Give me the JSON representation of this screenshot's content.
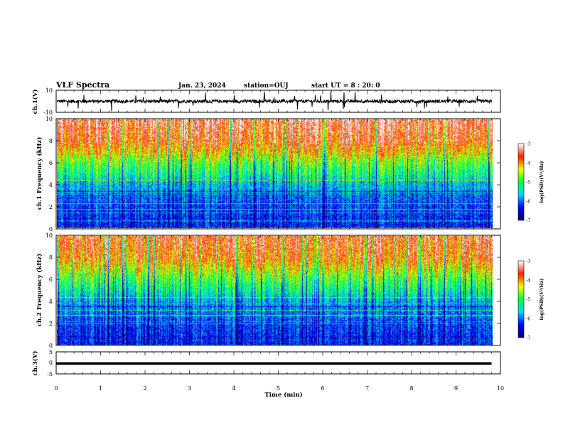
{
  "header": {
    "title": "VLF Spectra",
    "date": "Jan. 23, 2024",
    "station": "station=OUJ",
    "start": "start UT = 8 : 20: 0"
  },
  "chart_data": [
    {
      "type": "line",
      "panel": "ch1-waveform",
      "ylabel": "ch.1(V)",
      "ylim": [
        -10,
        10
      ],
      "yticks": [
        "10",
        "-10"
      ],
      "xlim": [
        0,
        10
      ],
      "color": "#000000",
      "baseline": 0,
      "typical_amplitude": 1.5,
      "peak_amplitude": 9
    },
    {
      "type": "heatmap",
      "panel": "ch1-spectrogram",
      "ylabel": "ch.1 Frequency (kHz)",
      "ylim": [
        0,
        10
      ],
      "yticks": [
        "0",
        "2",
        "4",
        "6",
        "8",
        "10"
      ],
      "xlim": [
        0,
        9.8
      ],
      "colorbar": {
        "label": "log(PSD)(V²/Hz)",
        "range": [
          -7,
          -3
        ],
        "ticks": [
          "-3",
          "-4",
          "-5",
          "-6",
          "-7"
        ]
      },
      "profile_khz": [
        0,
        2,
        4,
        5,
        6,
        7,
        8,
        10
      ],
      "profile_logpsd": [
        -6.4,
        -6.2,
        -5.7,
        -5.2,
        -4.8,
        -4.2,
        -3.7,
        -3.4
      ]
    },
    {
      "type": "heatmap",
      "panel": "ch2-spectrogram",
      "ylabel": "ch.2 Frequency (kHz)",
      "ylim": [
        0,
        10
      ],
      "yticks": [
        "0",
        "2",
        "4",
        "6",
        "8",
        "10"
      ],
      "xlim": [
        0,
        9.8
      ],
      "colorbar": {
        "label": "log(PSD)(V²/Hz)",
        "range": [
          -7,
          -3
        ],
        "ticks": [
          "-3",
          "-4",
          "-5",
          "-6",
          "-7"
        ]
      },
      "profile_khz": [
        0,
        2,
        4,
        5,
        6,
        7,
        8,
        10
      ],
      "profile_logpsd": [
        -6.4,
        -6.2,
        -5.8,
        -5.3,
        -4.9,
        -4.4,
        -3.9,
        -3.6
      ]
    },
    {
      "type": "line",
      "panel": "ch3-waveform",
      "ylabel": "ch.3(V)",
      "ylim": [
        -5,
        5
      ],
      "yticks": [
        "5",
        "0",
        "-5"
      ],
      "xlim": [
        0,
        10
      ],
      "color": "#000000",
      "level": -0.3
    }
  ],
  "xaxis": {
    "label": "Time (min)",
    "ticks": [
      "0",
      "1",
      "2",
      "3",
      "4",
      "5",
      "6",
      "7",
      "8",
      "9",
      "10"
    ]
  },
  "colormap": [
    "#00007a",
    "#0000ff",
    "#00d8ff",
    "#00ff3c",
    "#f0ff00",
    "#ff1e00",
    "#ffffff"
  ]
}
